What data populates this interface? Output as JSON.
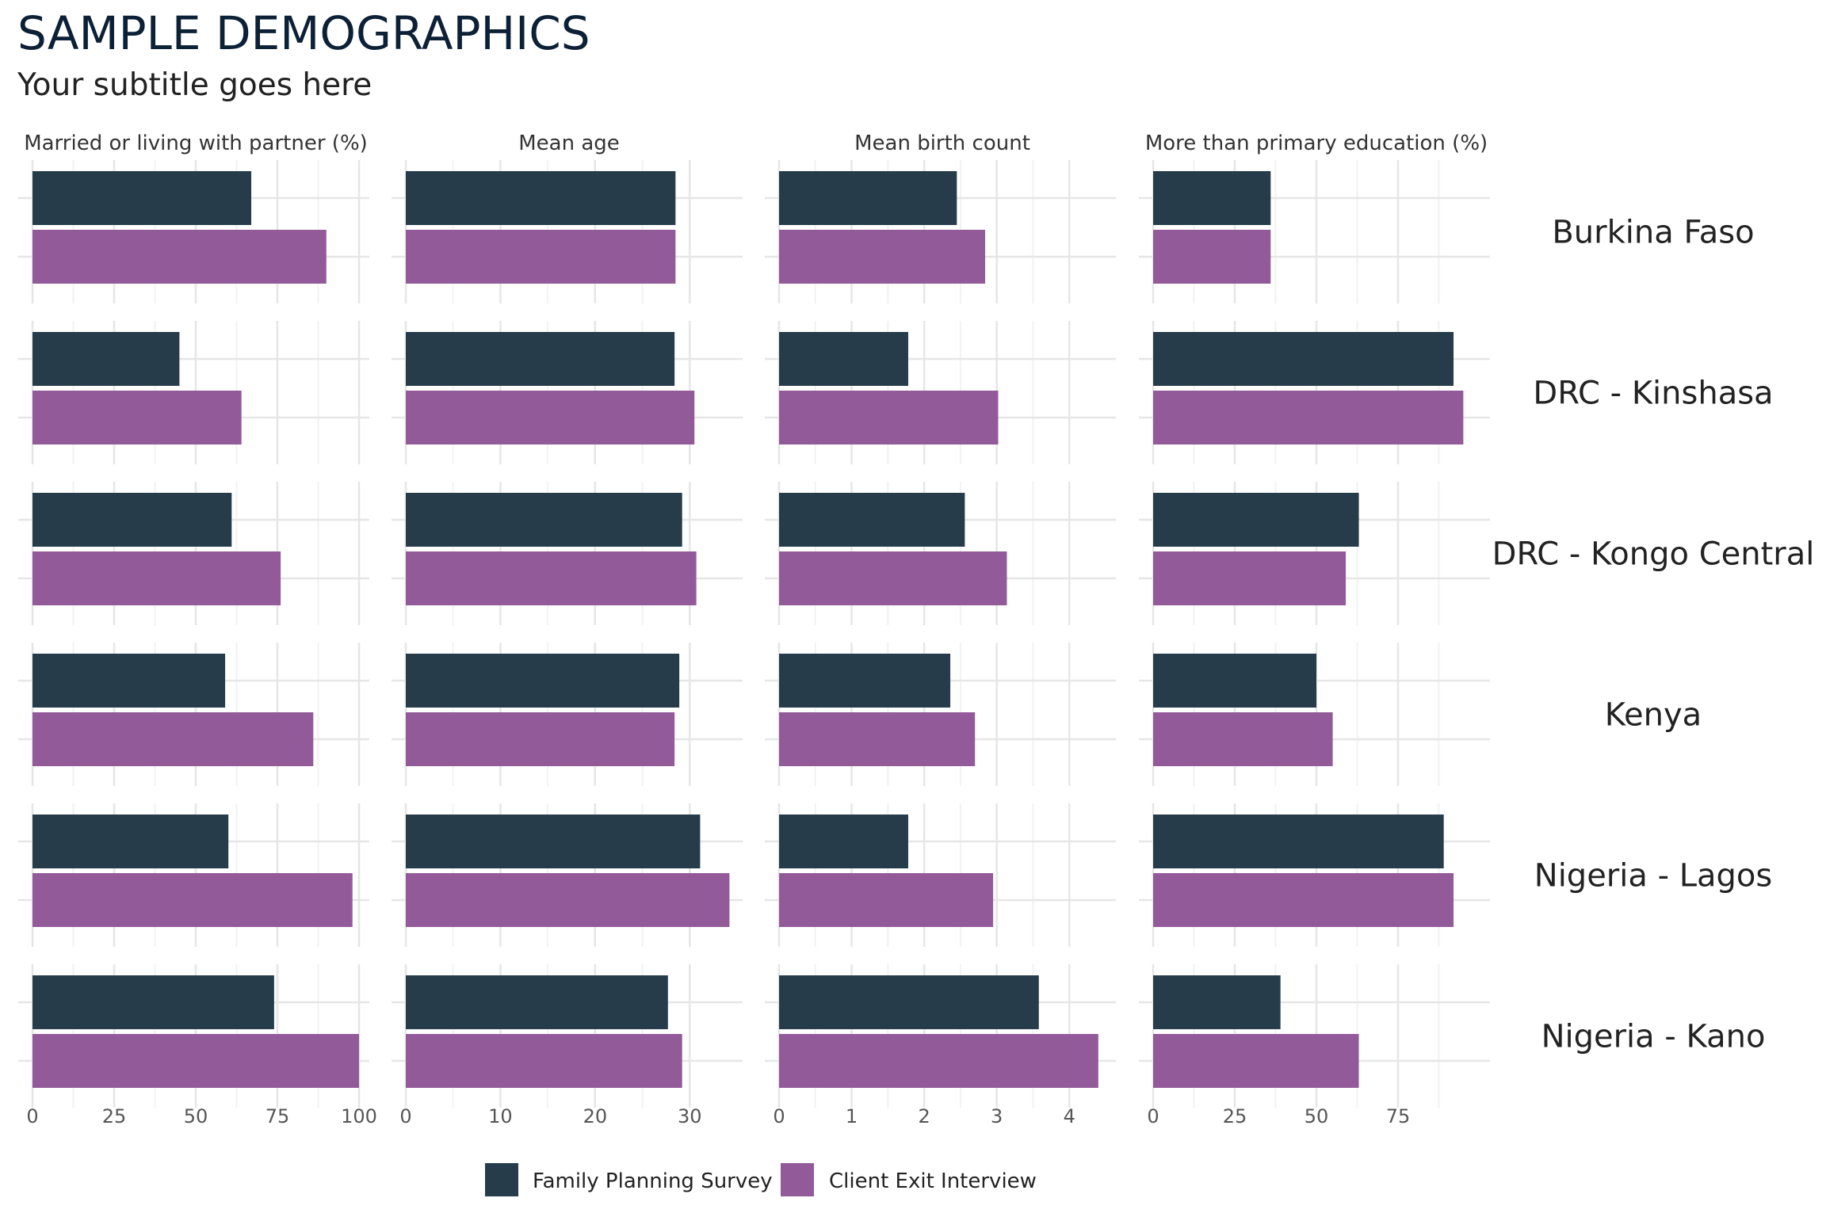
{
  "title": "SAMPLE DEMOGRAPHICS",
  "subtitle": "Your subtitle goes here",
  "chart_data": {
    "type": "bar",
    "orientation": "horizontal",
    "facets": [
      {
        "title": "Married or living with partner (%)",
        "ticks": [
          "0",
          "25",
          "50",
          "75",
          "100"
        ],
        "tick_values": [
          0,
          25,
          50,
          75,
          100
        ],
        "xlim": [
          0,
          100
        ]
      },
      {
        "title": "Mean age",
        "ticks": [
          "0",
          "10",
          "20",
          "30"
        ],
        "tick_values": [
          0,
          10,
          20,
          30
        ],
        "xlim": [
          0,
          34.5
        ]
      },
      {
        "title": "Mean birth count",
        "ticks": [
          "0",
          "1",
          "2",
          "3",
          "4"
        ],
        "tick_values": [
          0,
          1,
          2,
          3,
          4
        ],
        "xlim": [
          0,
          4.5
        ]
      },
      {
        "title": "More than primary education (%)",
        "ticks": [
          "0",
          "25",
          "50",
          "75"
        ],
        "tick_values": [
          0,
          25,
          50,
          75
        ],
        "xlim": [
          0,
          100
        ]
      }
    ],
    "rows": [
      "Burkina Faso",
      "DRC - Kinshasa",
      "DRC - Kongo Central",
      "Kenya",
      "Nigeria - Lagos",
      "Nigeria - Kano"
    ],
    "series": [
      {
        "name": "Family Planning Survey",
        "color": "#263c4b",
        "values": [
          [
            67,
            28.5,
            2.45,
            36
          ],
          [
            45,
            28.4,
            1.78,
            92
          ],
          [
            61,
            29.2,
            2.56,
            63
          ],
          [
            59,
            28.9,
            2.36,
            50
          ],
          [
            60,
            31.1,
            1.78,
            89
          ],
          [
            74,
            27.7,
            3.58,
            39
          ]
        ]
      },
      {
        "name": "Client Exit Interview",
        "color": "#935a9a",
        "values": [
          [
            90,
            28.5,
            2.84,
            36
          ],
          [
            64,
            30.5,
            3.02,
            95
          ],
          [
            76,
            30.7,
            3.14,
            59
          ],
          [
            86,
            28.4,
            2.7,
            55
          ],
          [
            98,
            34.2,
            2.95,
            92
          ],
          [
            100,
            29.2,
            4.4,
            63
          ]
        ]
      }
    ],
    "grid": true,
    "legend_position": "bottom"
  }
}
